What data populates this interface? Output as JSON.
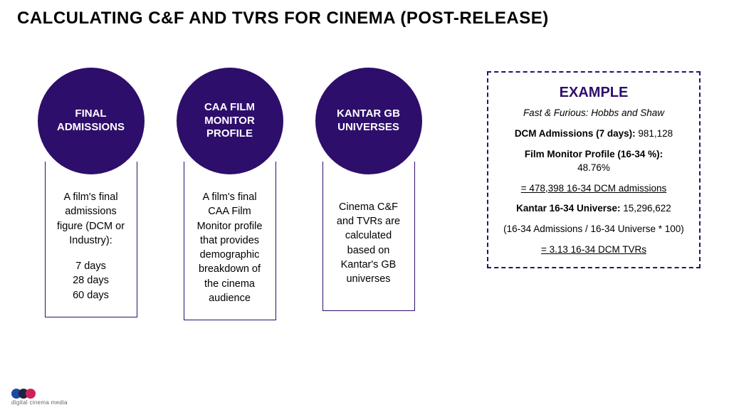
{
  "title": "CALCULATING C&F AND TVRS FOR CINEMA (POST-RELEASE)",
  "colors": {
    "circle_fill": "#2e0e6b",
    "stem_border": "#2e0e6b",
    "example_border": "#2e0e6b",
    "example_title": "#2e0e6b",
    "logo1": "#1b4aa3",
    "logo2": "#222244",
    "logo3": "#cc2255"
  },
  "columns": [
    {
      "circle": "FINAL ADMISSIONS",
      "body_intro": "A film's final admissions figure (DCM or Industry):",
      "body_lines": [
        "7 days",
        "28 days",
        "60 days"
      ]
    },
    {
      "circle": "CAA FILM MONITOR PROFILE",
      "body_intro": "A film's final CAA Film Monitor profile that provides demographic breakdown of the cinema audience",
      "body_lines": []
    },
    {
      "circle": "KANTAR GB UNIVERSES",
      "body_intro": "Cinema C&F and TVRs are calculated based on Kantar's GB universes",
      "body_lines": []
    }
  ],
  "example": {
    "heading": "EXAMPLE",
    "film": "Fast & Furious: Hobbs and Shaw",
    "admissions_label": "DCM Admissions (7 days):",
    "admissions_value": "981,128",
    "profile_label": "Film Monitor Profile (16-34 %):",
    "profile_value": "48.76%",
    "result1": "= 478,398 16-34 DCM admissions",
    "universe_label": "Kantar 16-34 Universe:",
    "universe_value": "15,296,622",
    "formula": "(16-34 Admissions / 16-34 Universe * 100)",
    "result2": "= 3.13 16-34 DCM TVRs"
  },
  "footer": "digital cinema media"
}
